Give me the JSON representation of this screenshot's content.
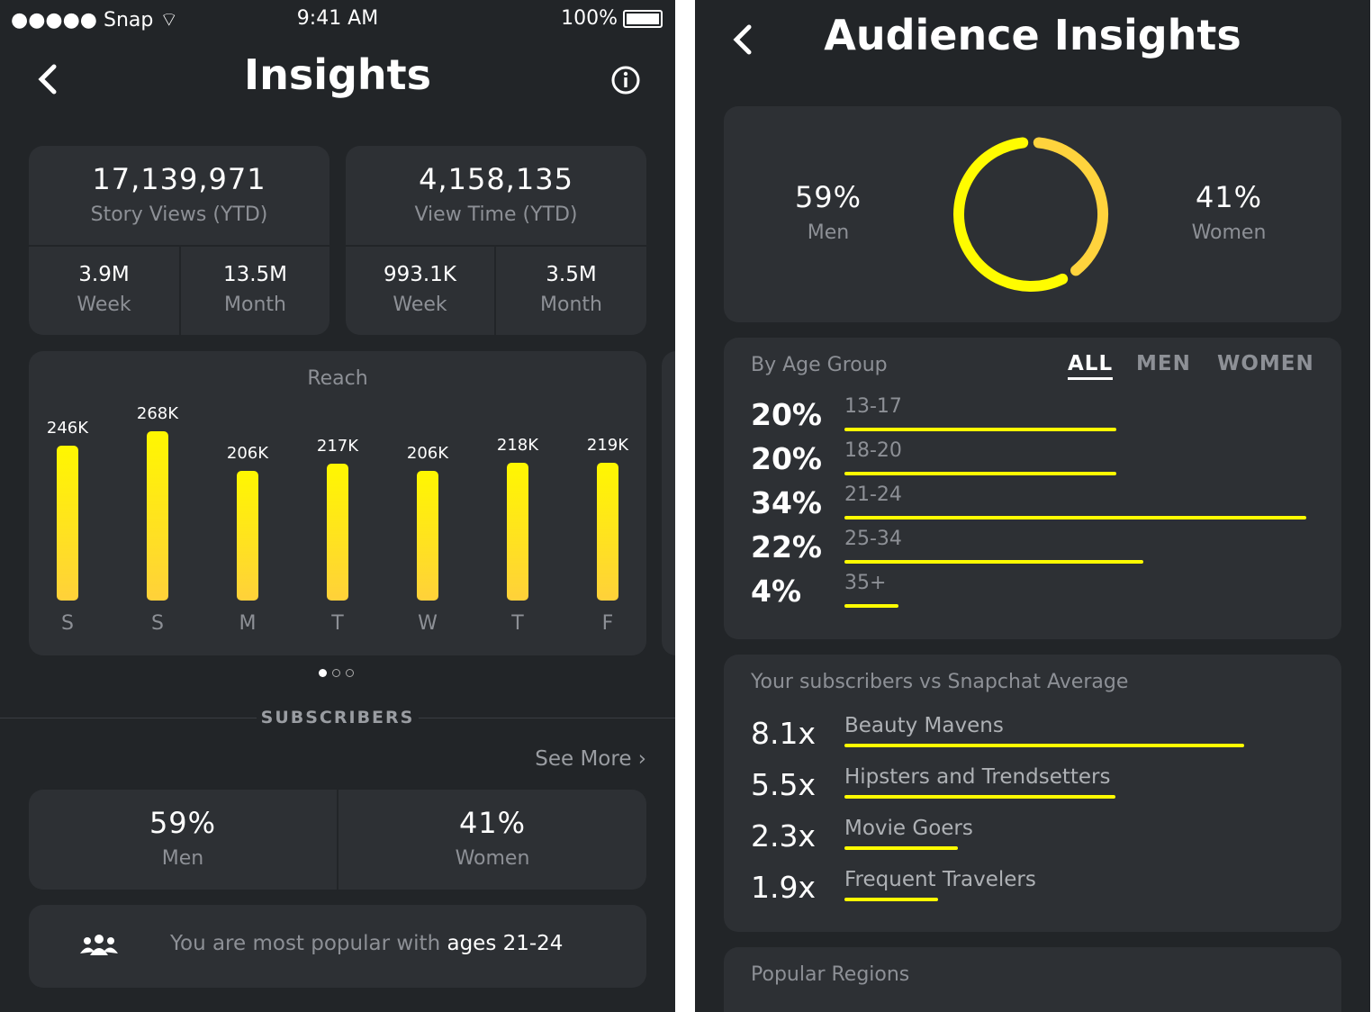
{
  "status_bar": {
    "carrier": "Snap",
    "time": "9:41 AM",
    "battery": "100%"
  },
  "left": {
    "title": "Insights",
    "stats": [
      {
        "value": "17,139,971",
        "label": "Story Views (YTD)",
        "week_value": "3.9M",
        "week_label": "Week",
        "month_value": "13.5M",
        "month_label": "Month"
      },
      {
        "value": "4,158,135",
        "label": "View Time (YTD)",
        "week_value": "993.1K",
        "week_label": "Week",
        "month_value": "3.5M",
        "month_label": "Month"
      }
    ],
    "reach": {
      "title": "Reach"
    },
    "page_dots": {
      "count": 3,
      "active": 0
    },
    "subscribers_heading": "SUBSCRIBERS",
    "see_more": "See More",
    "gender": [
      {
        "value": "59%",
        "label": "Men"
      },
      {
        "value": "41%",
        "label": "Women"
      }
    ],
    "popular": {
      "prefix": "You are most popular with ",
      "highlight": "ages 21-24"
    }
  },
  "chart_data": {
    "type": "bar",
    "title": "Reach",
    "categories": [
      "S",
      "S",
      "M",
      "T",
      "W",
      "T",
      "F"
    ],
    "values": [
      246,
      268,
      206,
      217,
      206,
      218,
      219
    ],
    "data_labels": [
      "246K",
      "268K",
      "206K",
      "217K",
      "206K",
      "218K",
      "219K"
    ],
    "units": "K"
  },
  "right": {
    "title": "Audience Insights",
    "gender": {
      "men_value": "59%",
      "men_label": "Men",
      "women_value": "41%",
      "women_label": "Women",
      "men_fraction": 0.59,
      "women_fraction": 0.41,
      "men_color": "#fffc00",
      "women_color": "#ffd33d"
    },
    "age": {
      "title": "By Age Group",
      "tabs": [
        "ALL",
        "MEN",
        "WOMEN"
      ],
      "active_tab": "ALL",
      "rows": [
        {
          "pct": "20%",
          "label": "13-17",
          "value": 20
        },
        {
          "pct": "20%",
          "label": "18-20",
          "value": 20
        },
        {
          "pct": "34%",
          "label": "21-24",
          "value": 34
        },
        {
          "pct": "22%",
          "label": "25-34",
          "value": 22
        },
        {
          "pct": "4%",
          "label": "35+",
          "value": 4
        }
      ]
    },
    "compare": {
      "title": "Your subscribers vs Snapchat Average",
      "rows": [
        {
          "mult": "8.1x",
          "label": "Beauty Mavens",
          "value": 8.1
        },
        {
          "mult": "5.5x",
          "label": "Hipsters and Trendsetters",
          "value": 5.5
        },
        {
          "mult": "2.3x",
          "label": "Movie Goers",
          "value": 2.3
        },
        {
          "mult": "1.9x",
          "label": "Frequent Travelers",
          "value": 1.9
        }
      ]
    },
    "regions_title": "Popular Regions"
  },
  "colors": {
    "background": "#222528",
    "card": "#2d3034",
    "accent": "#fffc00"
  }
}
